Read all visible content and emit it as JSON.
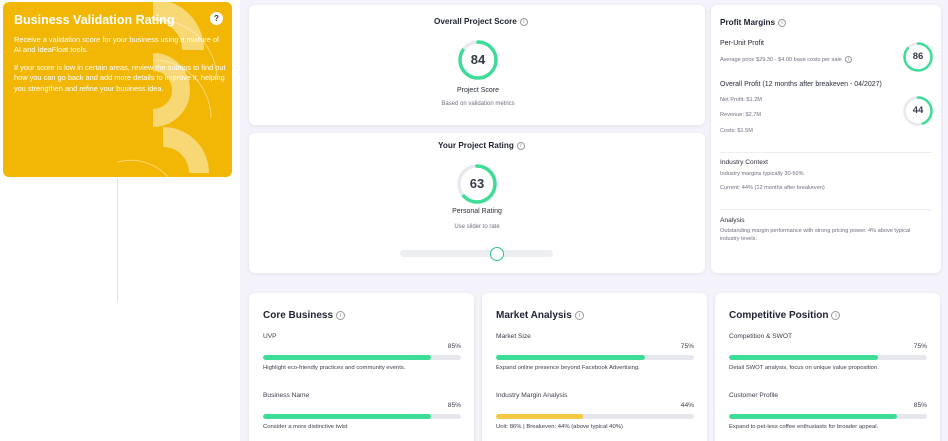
{
  "promo": {
    "title": "Business Validation Rating",
    "help": "?",
    "p1": "Receive a validation score for your business using a mixture of AI and IdeaFloat tools.",
    "p2": "If your score is low in certain areas, review the subtips to find out how you can go back and add more details to improve it, helping you strengthen and refine your business idea."
  },
  "overall": {
    "title": "Overall Project Score",
    "score": "84",
    "score_value": 84,
    "label": "Project Score",
    "sub": "Based on validation metrics"
  },
  "rating": {
    "title": "Your Project Rating",
    "score": "63",
    "score_value": 63,
    "label": "Personal Rating",
    "sub": "Use slider to rate"
  },
  "margins": {
    "title": "Profit Margins",
    "per_unit_title": "Per-Unit Profit",
    "per_unit_desc": "Average price $29.30 - $4.00 base costs per sale",
    "per_unit_score": "86",
    "per_unit_value": 86,
    "overall_title": "Overall Profit (12 months after breakeven - 04/2027)",
    "net_profit": "Net Profit: $1.2M",
    "revenue": "Revenue: $2.7M",
    "costs": "Costs: $1.5M",
    "overall_score": "44",
    "overall_value": 44,
    "industry_title": "Industry Context",
    "industry_line1": "Industry margins typically 30-50%",
    "industry_line2": "Current: 44% (12 months after breakeven)",
    "analysis_title": "Analysis",
    "analysis_line1": "Outstanding margin performance with strong pricing power. 4% above typical",
    "analysis_line2": "industry levels."
  },
  "core": {
    "title": "Core Business",
    "m1_name": "UVP",
    "m1_pct": "85%",
    "m1_value": 85,
    "m1_note": "Highlight eco-friendly practices and community events.",
    "m2_name": "Business Name",
    "m2_pct": "85%",
    "m2_value": 85,
    "m2_note": "Consider a more distinctive twist"
  },
  "market": {
    "title": "Market Analysis",
    "m1_name": "Market Size",
    "m1_pct": "75%",
    "m1_value": 75,
    "m1_note": "Expand online presence beyond Facebook Advertising.",
    "m2_name": "Industry Margin Analysis",
    "m2_pct": "44%",
    "m2_value": 44,
    "m2_note": "Unit: 86% | Breakeven: 44% (above typical 40%)"
  },
  "competitive": {
    "title": "Competitive Position",
    "m1_name": "Competition & SWOT",
    "m1_pct": "75%",
    "m1_value": 75,
    "m1_note": "Detail SWOT analysis, focus on unique value proposition.",
    "m2_name": "Customer Profile",
    "m2_pct": "85%",
    "m2_value": 85,
    "m2_note": "Expand to pet-less coffee enthusiasts for broader appeal."
  },
  "colors": {
    "accent": "#f2b705",
    "good": "#3ddc97",
    "warn": "#f5c842",
    "ring_track": "#e8e9ee"
  }
}
